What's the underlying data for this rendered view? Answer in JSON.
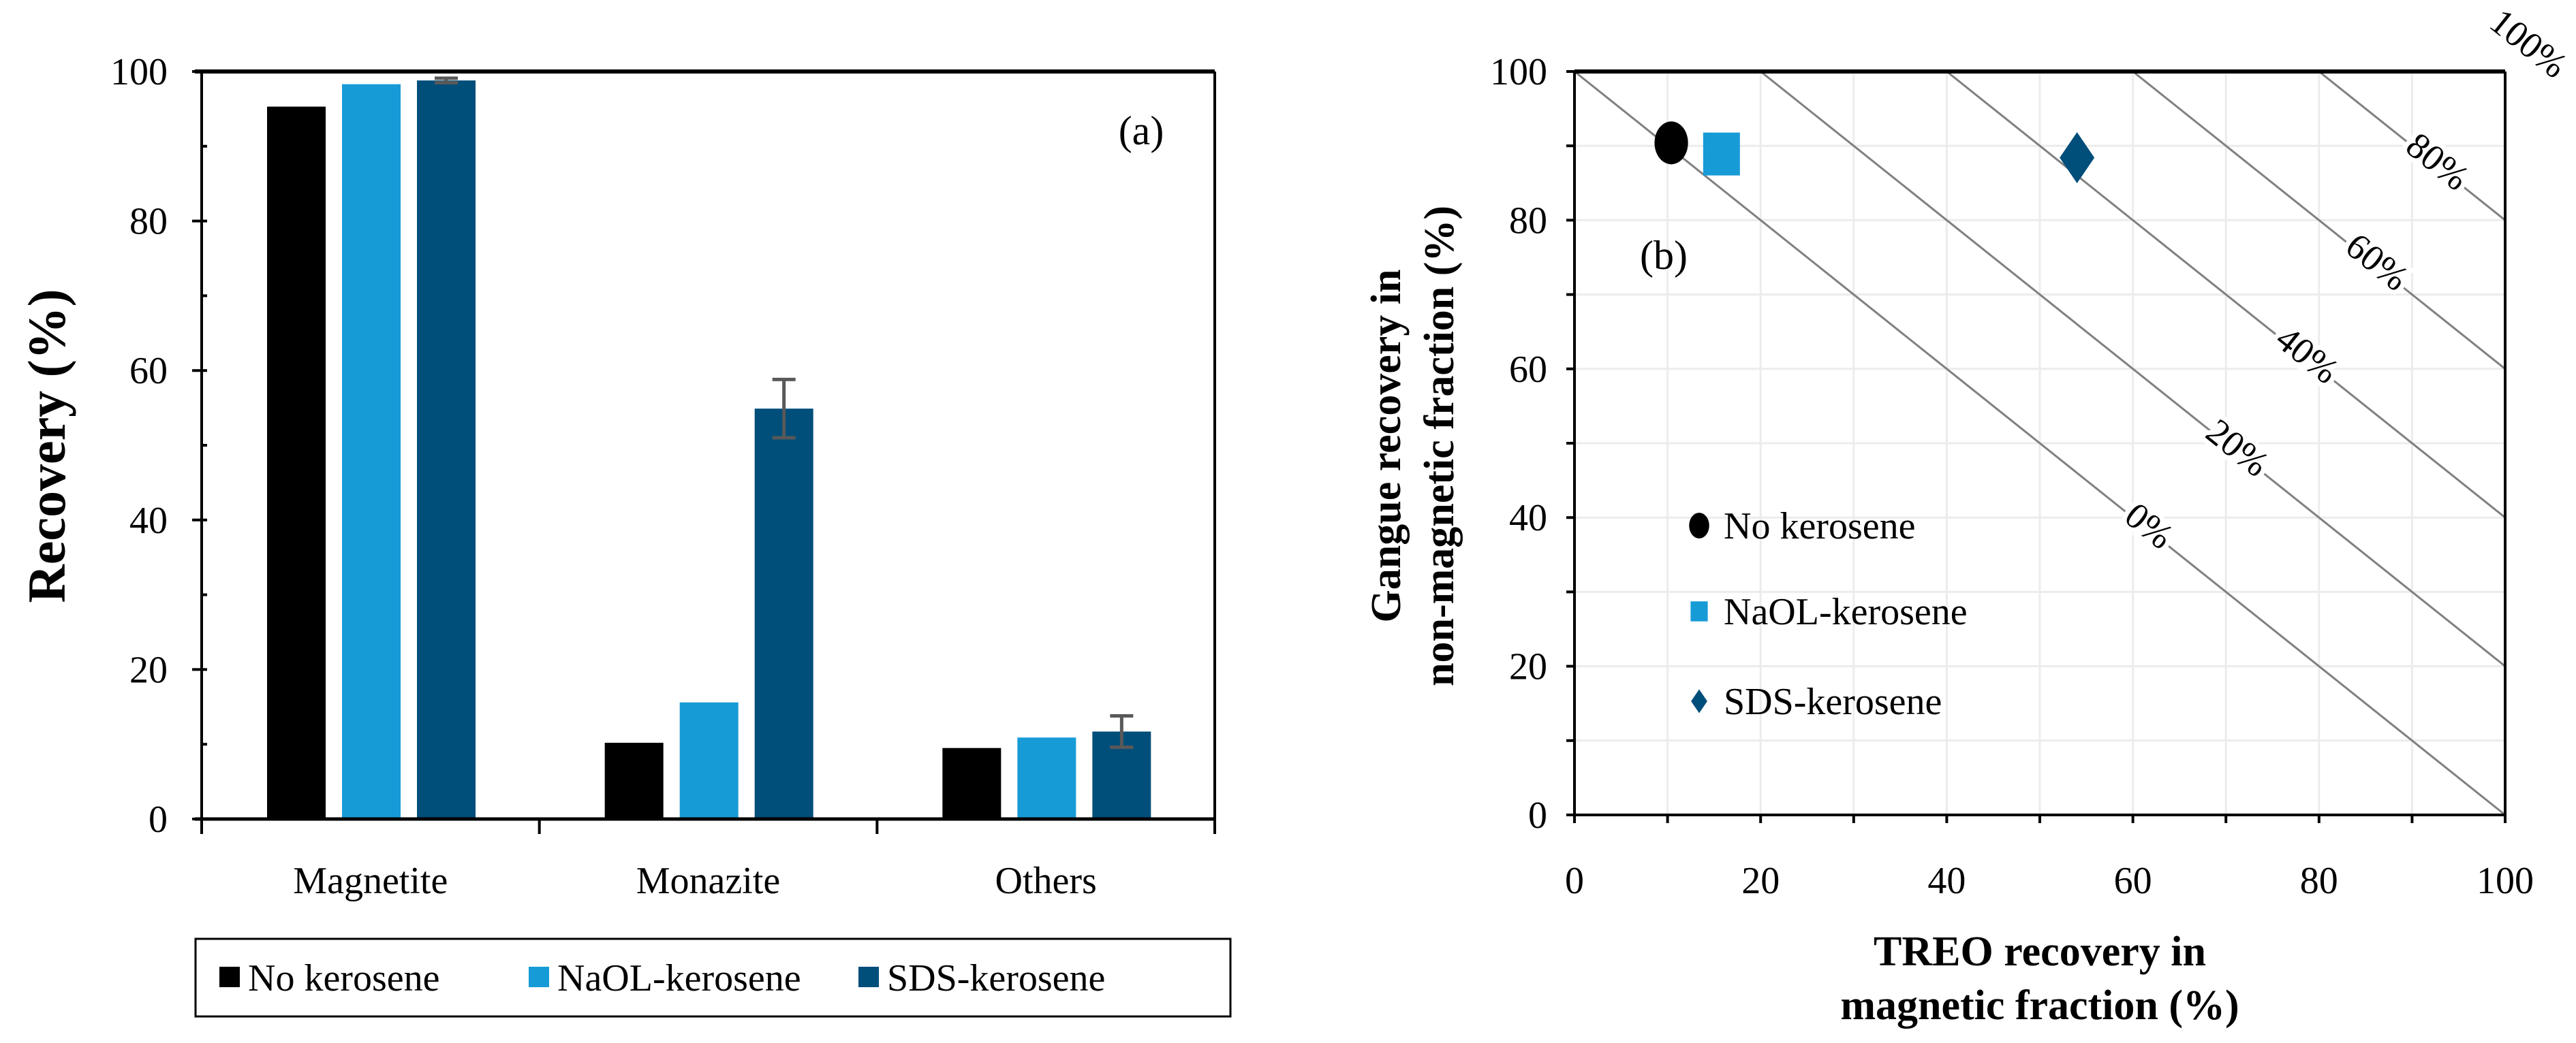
{
  "chart_data": [
    {
      "type": "bar",
      "panel_label": "(a)",
      "categories": [
        "Magnetite",
        "Monazite",
        "Others"
      ],
      "series": [
        {
          "name": "No kerosene",
          "color": "#000000",
          "values": [
            95.3,
            10.2,
            9.5
          ],
          "errors": [
            0,
            0,
            0
          ]
        },
        {
          "name": "NaOL-kerosene",
          "color": "#179BD7",
          "values": [
            98.3,
            15.6,
            10.9
          ],
          "errors": [
            0,
            0,
            0
          ]
        },
        {
          "name": "SDS-kerosene",
          "color": "#004E7A",
          "values": [
            98.8,
            54.9,
            11.7
          ],
          "errors": [
            0.3,
            3.9,
            2.1
          ]
        }
      ],
      "xlabel": "",
      "ylabel": "Recovery (%)",
      "ylim": [
        0,
        100
      ],
      "yticks": [
        "0",
        "20",
        "40",
        "60",
        "80",
        "100"
      ],
      "legend_placement": "bottom"
    },
    {
      "type": "scatter",
      "panel_label": "(b)",
      "xlabel": [
        "TREO recovery in",
        "magnetic fraction (%)"
      ],
      "ylabel": [
        "Gangue recovery in",
        "non-magnetic fraction (%)"
      ],
      "xlim": [
        0,
        100
      ],
      "ylim": [
        0,
        100
      ],
      "xticks": [
        "0",
        "20",
        "40",
        "60",
        "80",
        "100"
      ],
      "yticks": [
        "0",
        "20",
        "40",
        "60",
        "80",
        "100"
      ],
      "grid": true,
      "series": [
        {
          "name": "No kerosene",
          "marker": "circle",
          "color": "#000000",
          "x": 10.4,
          "y": 90.4
        },
        {
          "name": "NaOL-kerosene",
          "marker": "square",
          "color": "#179BD7",
          "x": 15.8,
          "y": 88.9
        },
        {
          "name": "SDS-kerosene",
          "marker": "diamond",
          "color": "#004E7A",
          "x": 54.0,
          "y": 88.4
        }
      ],
      "efficiency_lines": [
        {
          "value": 0,
          "label": "0%"
        },
        {
          "value": 20,
          "label": "20%"
        },
        {
          "value": 40,
          "label": "40%"
        },
        {
          "value": 60,
          "label": "60%"
        },
        {
          "value": 80,
          "label": "80%"
        },
        {
          "value": 100,
          "label": "100%"
        }
      ],
      "legend_placement": "center-left"
    }
  ]
}
